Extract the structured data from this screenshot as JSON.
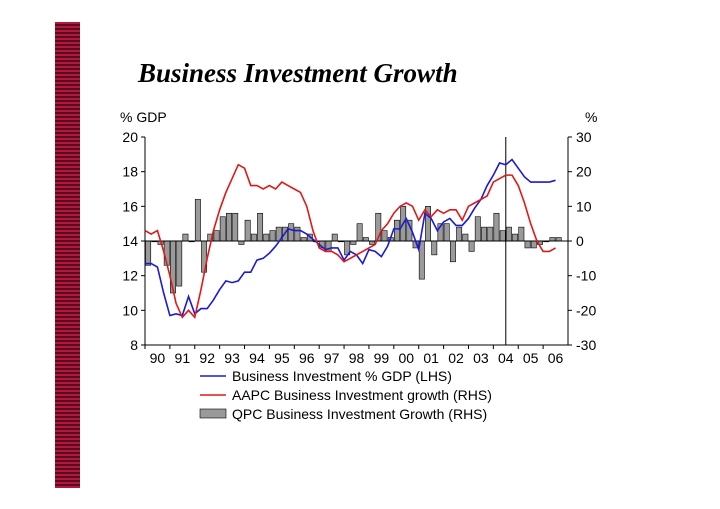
{
  "title": "Business Investment Growth",
  "chart_data": {
    "type": "line",
    "title": "Business Investment Growth",
    "xlabel": "",
    "ylabel_left": "% GDP",
    "ylabel_right": "%",
    "ylim_left": [
      8,
      20
    ],
    "ylim_right": [
      -30,
      30
    ],
    "yticks_left": [
      "20",
      "18",
      "16",
      "14",
      "12",
      "10",
      "8"
    ],
    "yticks_right": [
      "30",
      "20",
      "10",
      "0",
      "-10",
      "-20",
      "-30"
    ],
    "categories": [
      "90",
      "91",
      "92",
      "93",
      "94",
      "95",
      "96",
      "97",
      "98",
      "99",
      "00",
      "01",
      "02",
      "03",
      "04",
      "05",
      "06"
    ],
    "x_start": 1990.0,
    "x_end": 2007.0,
    "marker_line_x": 2004.5,
    "grid": false,
    "legend_position": "bottom",
    "series": [
      {
        "name": "Business Investment % GDP (LHS)",
        "axis": "left",
        "color": "#1a1ad6",
        "x": [
          1990.0,
          1990.25,
          1990.5,
          1990.75,
          1991.0,
          1991.25,
          1991.5,
          1991.75,
          1992.0,
          1992.25,
          1992.5,
          1992.75,
          1993.0,
          1993.25,
          1993.5,
          1993.75,
          1994.0,
          1994.25,
          1994.5,
          1994.75,
          1995.0,
          1995.25,
          1995.5,
          1995.75,
          1996.0,
          1996.25,
          1996.5,
          1996.75,
          1997.0,
          1997.25,
          1997.5,
          1997.75,
          1998.0,
          1998.25,
          1998.5,
          1998.75,
          1999.0,
          1999.25,
          1999.5,
          1999.75,
          2000.0,
          2000.25,
          2000.5,
          2000.75,
          2001.0,
          2001.25,
          2001.5,
          2001.75,
          2002.0,
          2002.25,
          2002.5,
          2002.75,
          2003.0,
          2003.25,
          2003.5,
          2003.75,
          2004.0,
          2004.25,
          2004.5,
          2004.75,
          2005.0,
          2005.25,
          2005.5,
          2005.75,
          2006.0,
          2006.25,
          2006.5
        ],
        "values": [
          12.7,
          12.7,
          12.5,
          11.0,
          9.7,
          9.8,
          9.7,
          10.8,
          9.8,
          10.1,
          10.1,
          10.6,
          11.2,
          11.7,
          11.6,
          11.7,
          12.2,
          12.2,
          12.9,
          13.0,
          13.3,
          13.7,
          14.2,
          14.7,
          14.6,
          14.6,
          14.4,
          14.1,
          13.8,
          13.5,
          13.6,
          13.6,
          12.9,
          13.4,
          13.2,
          12.7,
          13.5,
          13.4,
          13.1,
          13.7,
          14.7,
          14.7,
          15.3,
          14.5,
          13.5,
          15.6,
          15.3,
          14.6,
          15.1,
          15.3,
          14.9,
          14.9,
          15.3,
          15.9,
          16.4,
          17.2,
          17.8,
          18.5,
          18.4,
          18.7,
          18.2,
          17.7,
          17.4,
          17.4,
          17.4,
          17.4,
          17.5
        ]
      },
      {
        "name": "AAPC Business Investment growth (RHS)",
        "axis": "right",
        "color": "#e01818",
        "x": [
          1990.0,
          1990.25,
          1990.5,
          1990.75,
          1991.0,
          1991.25,
          1991.5,
          1991.75,
          1992.0,
          1992.25,
          1992.5,
          1992.75,
          1993.0,
          1993.25,
          1993.5,
          1993.75,
          1994.0,
          1994.25,
          1994.5,
          1994.75,
          1995.0,
          1995.25,
          1995.5,
          1995.75,
          1996.0,
          1996.25,
          1996.5,
          1996.75,
          1997.0,
          1997.25,
          1997.5,
          1997.75,
          1998.0,
          1998.25,
          1998.5,
          1998.75,
          1999.0,
          1999.25,
          1999.5,
          1999.75,
          2000.0,
          2000.25,
          2000.5,
          2000.75,
          2001.0,
          2001.25,
          2001.5,
          2001.75,
          2002.0,
          2002.25,
          2002.5,
          2002.75,
          2003.0,
          2003.25,
          2003.5,
          2003.75,
          2004.0,
          2004.25,
          2004.5,
          2004.75,
          2005.0,
          2005.25,
          2005.5,
          2005.75,
          2006.0,
          2006.25,
          2006.5
        ],
        "values": [
          3,
          2,
          3,
          -3,
          -10,
          -18,
          -22,
          -20,
          -22,
          -14,
          -5,
          3,
          9,
          14,
          18,
          22,
          21,
          16,
          16,
          15,
          16,
          15,
          17,
          16,
          15,
          14,
          10,
          3,
          -2,
          -3,
          -3,
          -4,
          -6,
          -5,
          -4,
          -3,
          -2,
          -1,
          3,
          5,
          8,
          10,
          11,
          10,
          6,
          9,
          7,
          9,
          8,
          9,
          9,
          6,
          10,
          11,
          12,
          13,
          17,
          18,
          19,
          19,
          16,
          11,
          5,
          0,
          -3,
          -3,
          -2
        ]
      },
      {
        "name": "QPC Business Investment Growth (RHS)",
        "axis": "right",
        "type": "bar",
        "color": "#9a9a9a",
        "x": [
          1990.0,
          1990.25,
          1990.5,
          1990.75,
          1991.0,
          1991.25,
          1991.5,
          1991.75,
          1992.0,
          1992.25,
          1992.5,
          1992.75,
          1993.0,
          1993.25,
          1993.5,
          1993.75,
          1994.0,
          1994.25,
          1994.5,
          1994.75,
          1995.0,
          1995.25,
          1995.5,
          1995.75,
          1996.0,
          1996.25,
          1996.5,
          1996.75,
          1997.0,
          1997.25,
          1997.5,
          1997.75,
          1998.0,
          1998.25,
          1998.5,
          1998.75,
          1999.0,
          1999.25,
          1999.5,
          1999.75,
          2000.0,
          2000.25,
          2000.5,
          2000.75,
          2001.0,
          2001.25,
          2001.5,
          2001.75,
          2002.0,
          2002.25,
          2002.5,
          2002.75,
          2003.0,
          2003.25,
          2003.5,
          2003.75,
          2004.0,
          2004.25,
          2004.5,
          2004.75,
          2005.0,
          2005.25,
          2005.5,
          2005.75,
          2006.0,
          2006.25,
          2006.5
        ],
        "values": [
          -7,
          0,
          -1,
          -7,
          -15,
          -13,
          2,
          0,
          12,
          -9,
          2,
          3,
          7,
          8,
          8,
          -1,
          6,
          2,
          8,
          2,
          3,
          4,
          4,
          5,
          4,
          1,
          2,
          0,
          -2,
          -3,
          2,
          0,
          -4,
          -1,
          5,
          1,
          -1,
          8,
          3,
          1,
          6,
          10,
          6,
          -2,
          -11,
          10,
          -4,
          5,
          5,
          -6,
          4,
          2,
          -3,
          7,
          4,
          4,
          8,
          3,
          4,
          2,
          4,
          -2,
          -2,
          -1,
          0,
          1,
          1
        ]
      }
    ]
  }
}
